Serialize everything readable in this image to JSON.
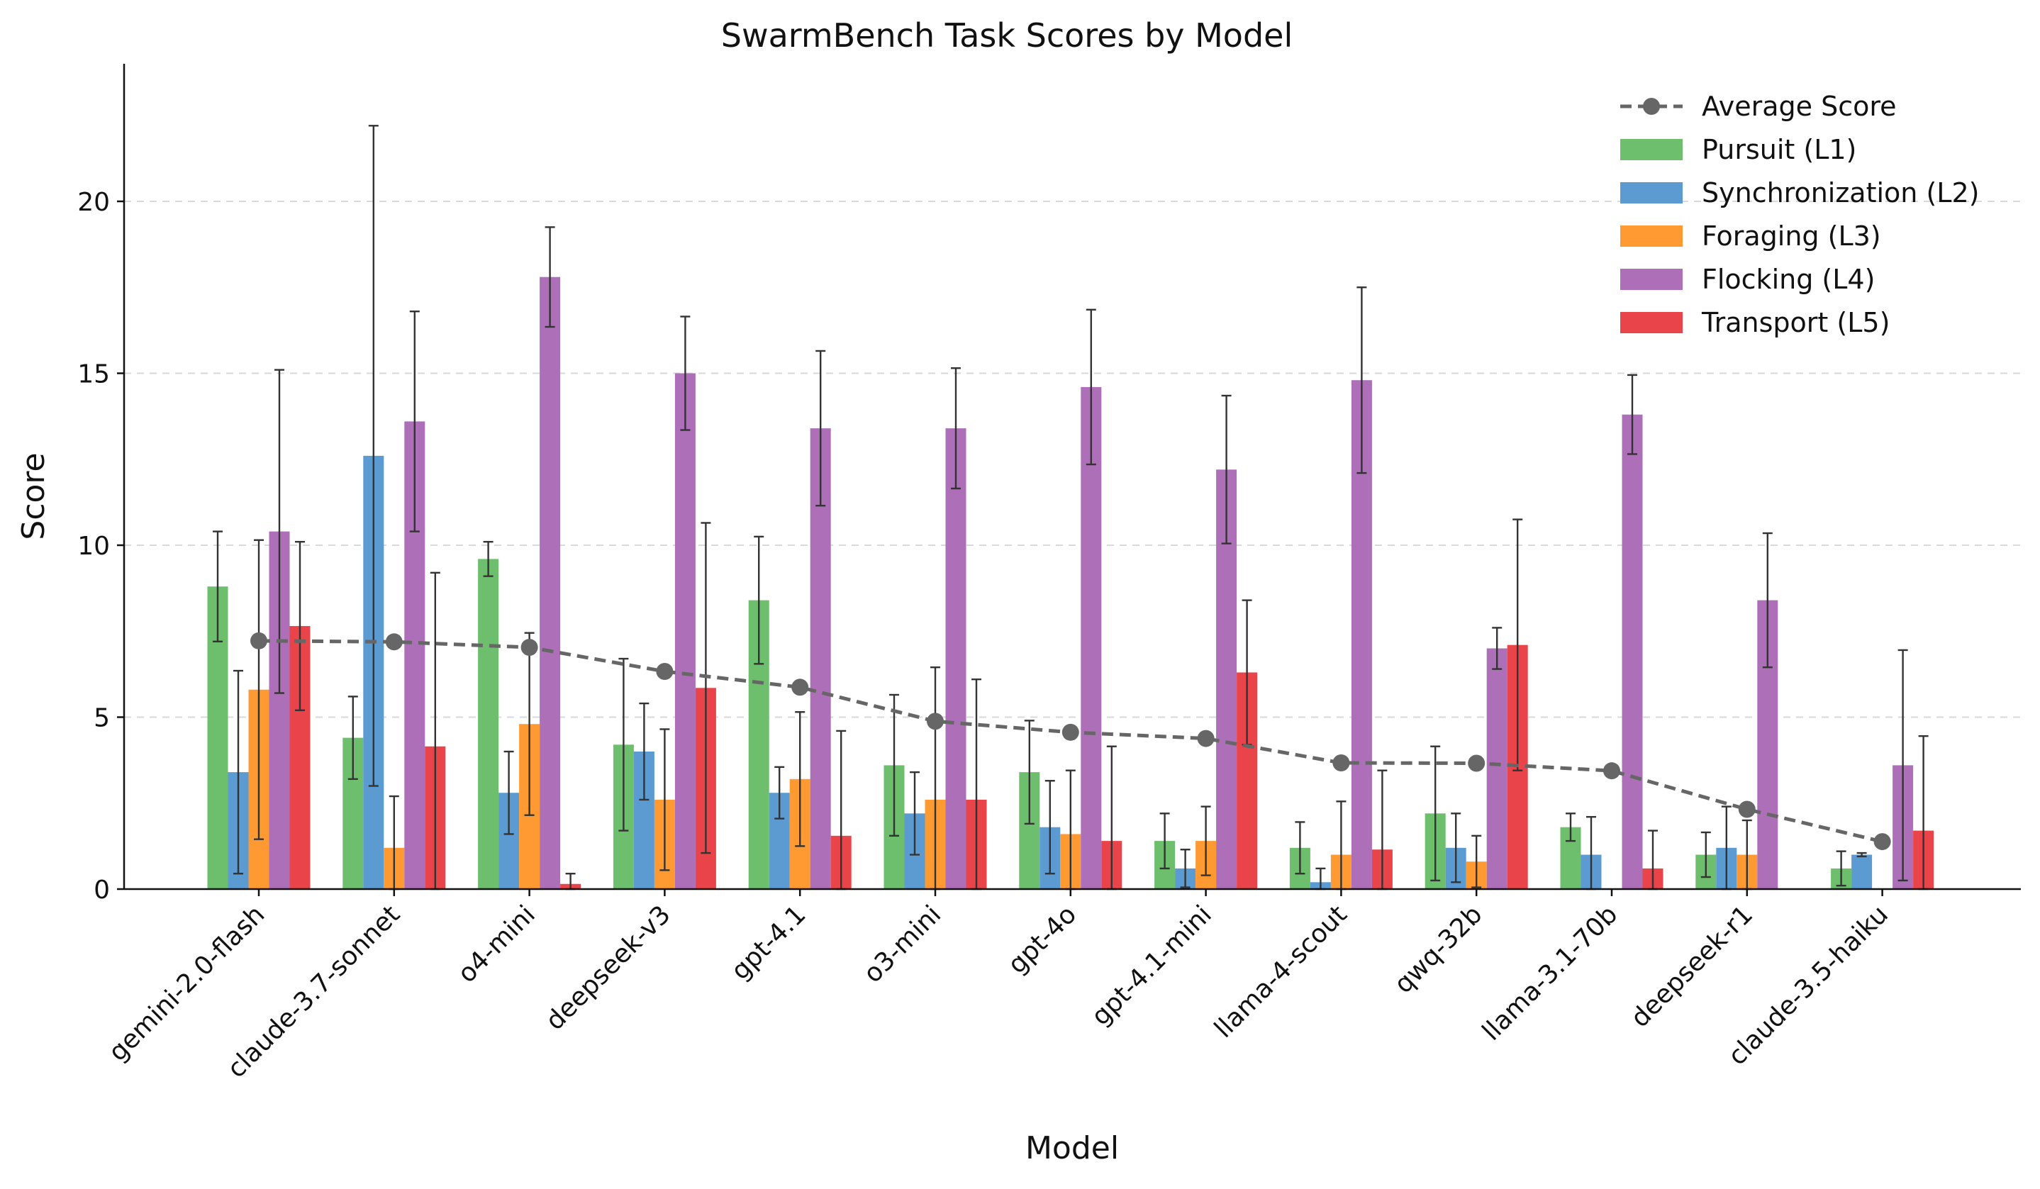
{
  "chart_data": {
    "type": "bar",
    "title": "SwarmBench Task Scores by Model",
    "xlabel": "Model",
    "ylabel": "Score",
    "ylim": [
      0,
      24
    ],
    "yticks": [
      0,
      5,
      10,
      15,
      20
    ],
    "grid": "horizontal dashed",
    "legend_position": "top-right",
    "categories": [
      "gemini-2.0-flash",
      "claude-3.7-sonnet",
      "o4-mini",
      "deepseek-v3",
      "gpt-4.1",
      "o3-mini",
      "gpt-4o",
      "gpt-4.1-mini",
      "llama-4-scout",
      "qwq-32b",
      "llama-3.1-70b",
      "deepseek-r1",
      "claude-3.5-haiku"
    ],
    "series": [
      {
        "name": "Pursuit (L1)",
        "color": "#6dbf6d",
        "values": [
          8.8,
          4.4,
          9.6,
          4.2,
          8.4,
          3.6,
          3.4,
          1.4,
          1.2,
          2.2,
          1.8,
          1.0,
          0.6
        ],
        "errors": [
          1.6,
          1.2,
          0.5,
          2.5,
          1.85,
          2.05,
          1.5,
          0.8,
          0.75,
          1.95,
          0.4,
          0.65,
          0.5
        ]
      },
      {
        "name": "Synchronization (L2)",
        "color": "#5b9bd1",
        "values": [
          3.4,
          12.6,
          2.8,
          4.0,
          2.8,
          2.2,
          1.8,
          0.6,
          0.2,
          1.2,
          1.0,
          1.2,
          1.0
        ],
        "errors": [
          2.95,
          9.6,
          1.2,
          1.4,
          0.75,
          1.2,
          1.35,
          0.55,
          0.4,
          1.0,
          1.1,
          1.2,
          0.05
        ]
      },
      {
        "name": "Foraging (L3)",
        "color": "#ff9a33",
        "values": [
          5.8,
          1.2,
          4.8,
          2.6,
          3.2,
          2.6,
          1.6,
          1.4,
          1.0,
          0.8,
          0.0,
          1.0,
          0.0
        ],
        "errors": [
          4.35,
          1.5,
          2.65,
          2.05,
          1.95,
          3.85,
          1.85,
          1.0,
          1.55,
          0.75,
          0.0,
          1.0,
          0.0
        ]
      },
      {
        "name": "Flocking (L4)",
        "color": "#ad6fb8",
        "values": [
          10.4,
          13.6,
          17.8,
          15.0,
          13.4,
          13.4,
          14.6,
          12.2,
          14.8,
          7.0,
          13.8,
          8.4,
          3.6
        ],
        "errors": [
          4.7,
          3.2,
          1.45,
          1.65,
          2.25,
          1.75,
          2.25,
          2.15,
          2.7,
          0.6,
          1.15,
          1.95,
          3.35
        ]
      },
      {
        "name": "Transport (L5)",
        "color": "#e84449",
        "values": [
          7.65,
          4.15,
          0.15,
          5.85,
          1.55,
          2.6,
          1.4,
          6.3,
          1.15,
          7.1,
          0.6,
          0.0,
          1.7
        ],
        "errors": [
          2.45,
          5.05,
          0.3,
          4.8,
          3.05,
          3.5,
          2.75,
          2.1,
          2.3,
          3.65,
          1.1,
          0.0,
          2.75
        ]
      }
    ],
    "line_series": {
      "name": "Average Score",
      "color": "#666666",
      "values": [
        7.22,
        7.19,
        7.03,
        6.33,
        5.87,
        4.88,
        4.56,
        4.38,
        3.67,
        3.66,
        3.44,
        2.32,
        1.38
      ]
    }
  }
}
